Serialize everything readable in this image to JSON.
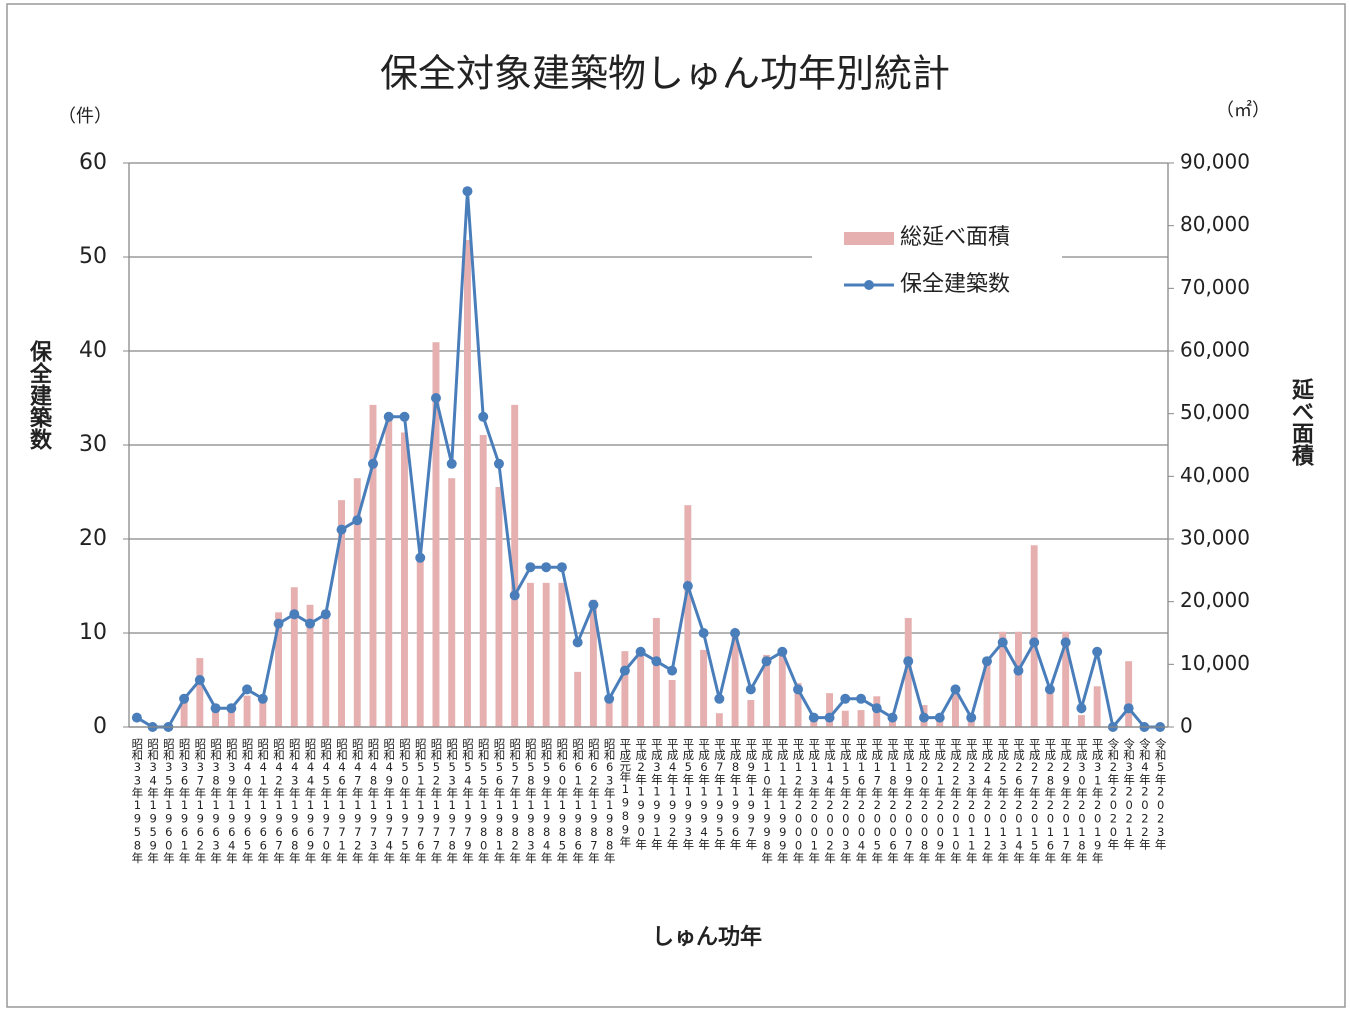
{
  "chart_data": {
    "type": "bar_line",
    "title": "保全対象建築物しゅん功年別統計",
    "y_unit": "（件）",
    "y2_unit": "（㎡）",
    "ylabel": "保全建築数",
    "y2label": "延べ面積",
    "xlabel": "しゅん功年",
    "categories": [
      "昭和33年1958年",
      "昭和34年1959年",
      "昭和35年1960年",
      "昭和36年1961年",
      "昭和37年1962年",
      "昭和38年1963年",
      "昭和39年1964年",
      "昭和40年1965年",
      "昭和41年1966年",
      "昭和42年1967年",
      "昭和43年1968年",
      "昭和44年1969年",
      "昭和45年1970年",
      "昭和46年1971年",
      "昭和47年1972年",
      "昭和48年1973年",
      "昭和49年1974年",
      "昭和50年1975年",
      "昭和51年1976年",
      "昭和52年1977年",
      "昭和53年1978年",
      "昭和54年1979年",
      "昭和55年1980年",
      "昭和56年1981年",
      "昭和57年1982年",
      "昭和58年1983年",
      "昭和59年1984年",
      "昭和60年1985年",
      "昭和61年1986年",
      "昭和62年1987年",
      "昭和63年1988年",
      "平成元年1989年",
      "平成2年1990年",
      "平成3年1991年",
      "平成4年1992年",
      "平成5年1993年",
      "平成6年1994年",
      "平成7年1995年",
      "平成8年1996年",
      "平成9年1997年",
      "平成10年1998年",
      "平成11年1999年",
      "平成12年2000年",
      "平成13年2001年",
      "平成14年2002年",
      "平成15年2003年",
      "平成16年2004年",
      "平成17年2005年",
      "平成18年2006年",
      "平成19年2007年",
      "平成20年2008年",
      "平成21年2009年",
      "平成22年2010年",
      "平成23年2011年",
      "平成24年2012年",
      "平成25年2013年",
      "平成26年2014年",
      "平成27年2015年",
      "平成28年2016年",
      "平成29年2017年",
      "平成30年2018年",
      "平成31年2019年",
      "令和2年2020年",
      "令和3年2021年",
      "令和4年2022年",
      "令和5年2023年"
    ],
    "series": [
      {
        "name": "総延べ面積",
        "type": "bar",
        "axis": "y2",
        "color": "#e6b0b0",
        "values": [
          0,
          0,
          0,
          5000,
          11000,
          2700,
          3500,
          5000,
          4000,
          18300,
          22300,
          19500,
          18700,
          36200,
          39700,
          51400,
          49000,
          47000,
          26600,
          61400,
          39700,
          77700,
          46600,
          38300,
          51400,
          23000,
          23000,
          23000,
          8800,
          20300,
          4800,
          12100,
          11500,
          17400,
          7500,
          35400,
          12300,
          2200,
          14700,
          4300,
          11500,
          11500,
          7000,
          1100,
          5400,
          2600,
          2700,
          4900,
          1100,
          17400,
          3500,
          1900,
          5900,
          1900,
          9900,
          15200,
          15200,
          29000,
          5900,
          15200,
          1900,
          6500,
          0,
          10500,
          0,
          0
        ]
      },
      {
        "name": "保全建築数",
        "type": "line",
        "color": "#4a7ebb",
        "values": [
          1,
          0,
          0,
          3,
          5,
          2,
          2,
          4,
          3,
          11,
          12,
          11,
          12,
          21,
          22,
          28,
          33,
          33,
          18,
          35,
          28,
          57,
          33,
          28,
          14,
          17,
          17,
          17,
          9,
          13,
          3,
          6,
          8,
          7,
          6,
          15,
          10,
          3,
          10,
          4,
          7,
          8,
          4,
          1,
          1,
          3,
          3,
          2,
          1,
          7,
          1,
          1,
          4,
          1,
          7,
          9,
          6,
          9,
          4,
          9,
          2,
          8,
          0,
          2,
          0,
          0
        ]
      }
    ],
    "ylim": [
      0,
      60
    ],
    "yticks": [
      0,
      10,
      20,
      30,
      40,
      50,
      60
    ],
    "y2lim": [
      0,
      90000
    ],
    "y2ticks": [
      {
        "value": 0,
        "label": "0"
      },
      {
        "value": 10000,
        "label": "10,000"
      },
      {
        "value": 20000,
        "label": "20,000"
      },
      {
        "value": 30000,
        "label": "30,000"
      },
      {
        "value": 40000,
        "label": "40,000"
      },
      {
        "value": 50000,
        "label": "50,000"
      },
      {
        "value": 60000,
        "label": "60,000"
      },
      {
        "value": 70000,
        "label": "70,000"
      },
      {
        "value": 80000,
        "label": "80,000"
      },
      {
        "value": 90000,
        "label": "90,000"
      }
    ],
    "grid": true,
    "legend": "upper right"
  }
}
